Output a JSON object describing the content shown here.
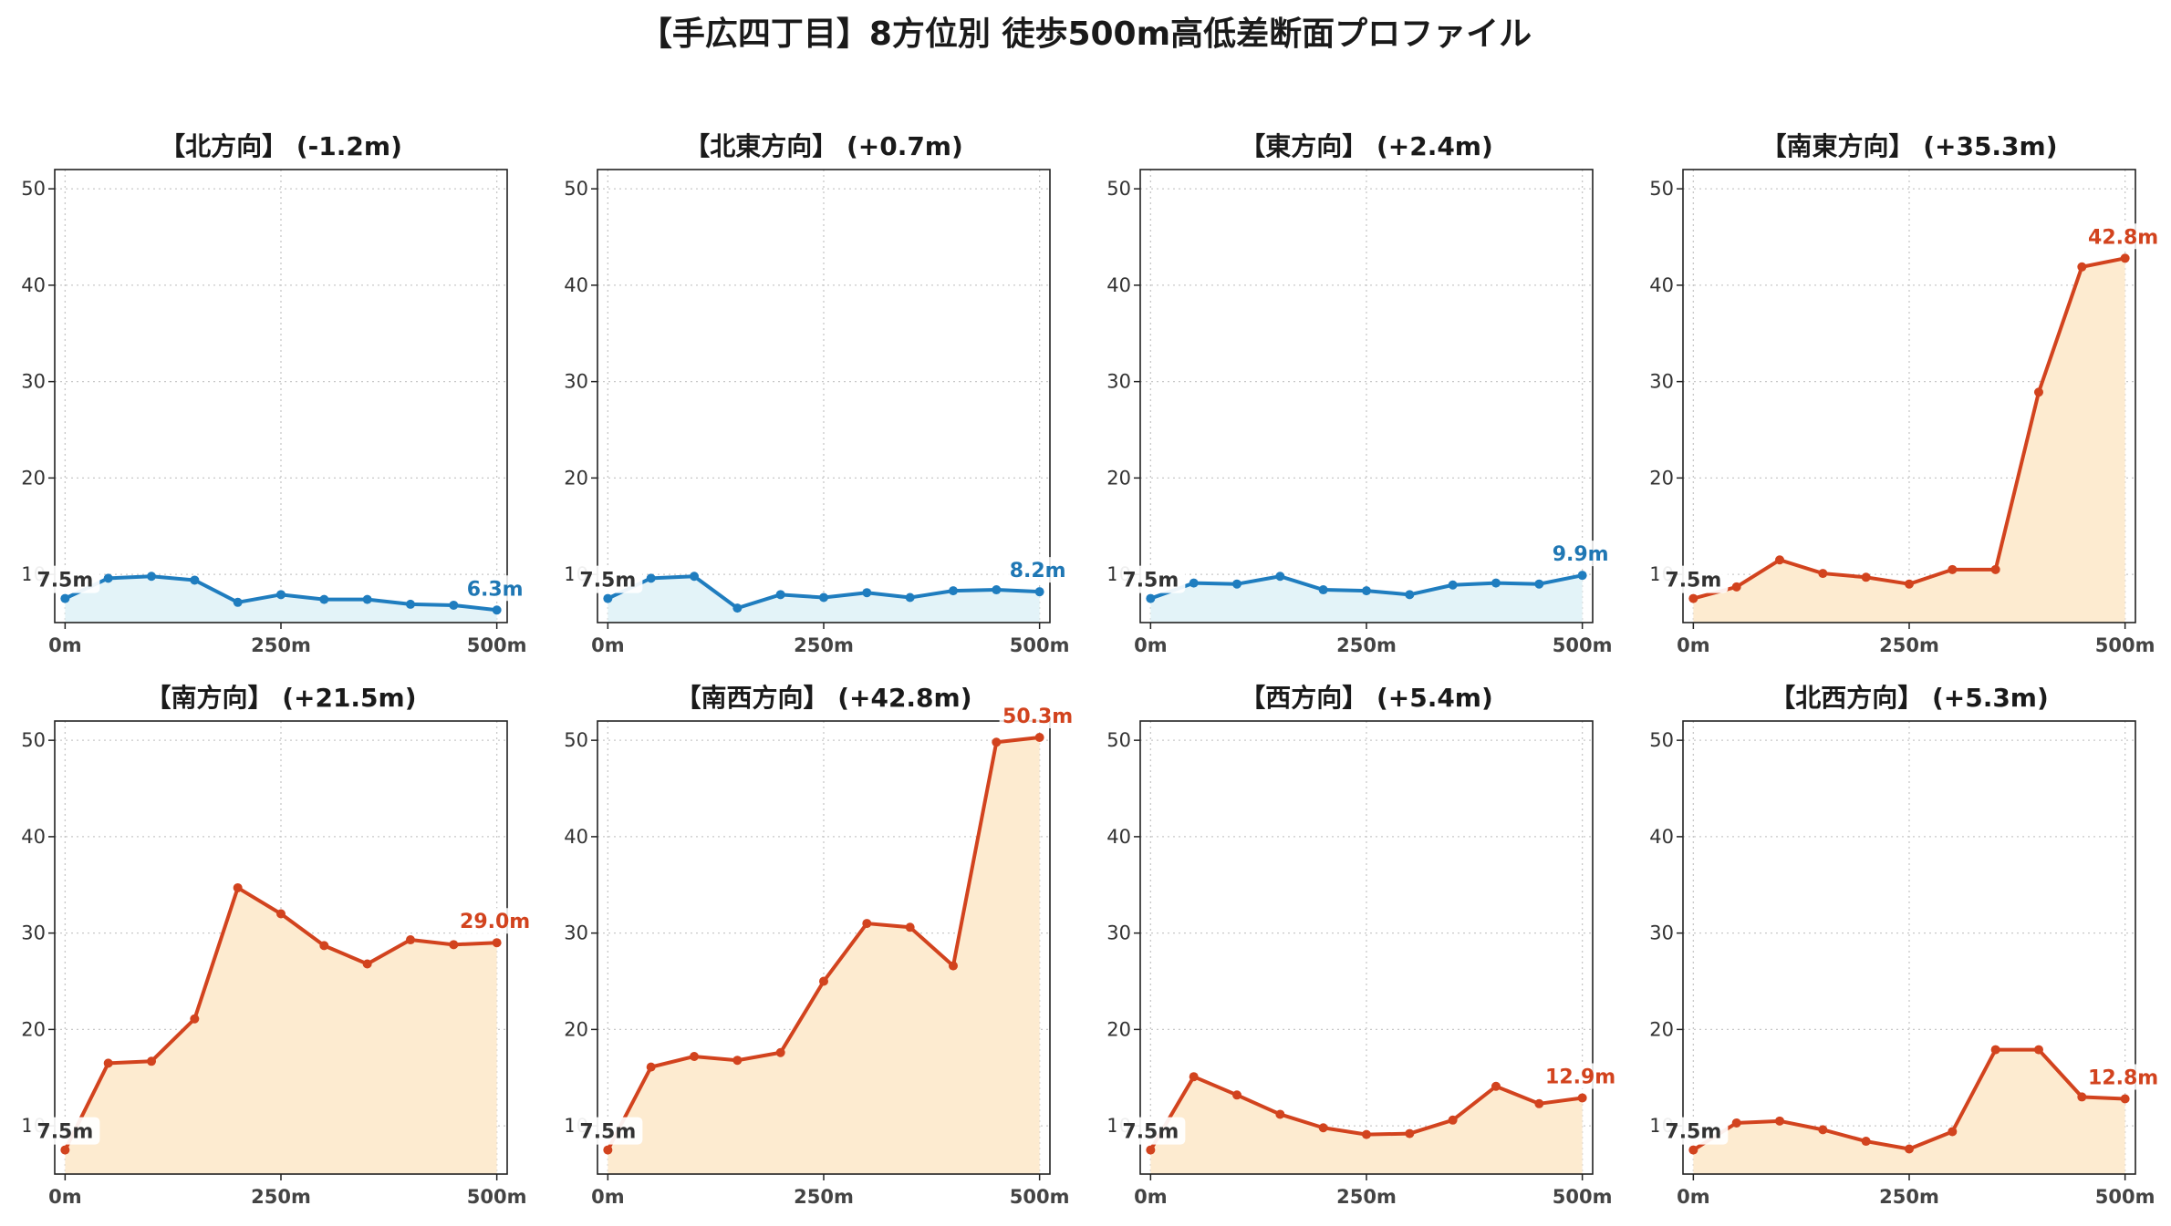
{
  "title": "【手広四丁目】8方位別 徒歩500m高低差断面プロファイル",
  "colors": {
    "down": "#1f77b4",
    "down_line": "#1f7dbf",
    "down_fill": "#e3f3f8",
    "up": "#d2431e",
    "up_fill": "#fdebd0",
    "start_label": "#333333",
    "grid": "#c8c8c8",
    "axis": "#222222"
  },
  "chart_data": [
    {
      "type": "area",
      "title": "【北方向】 (-1.2m)",
      "direction": "down",
      "x": [
        0,
        50,
        100,
        150,
        200,
        250,
        300,
        350,
        400,
        450,
        500
      ],
      "y": [
        7.5,
        9.6,
        9.8,
        9.4,
        7.1,
        7.9,
        7.4,
        7.4,
        6.9,
        6.8,
        6.3
      ],
      "xticks": [
        "0m",
        "250m",
        "500m"
      ],
      "xtick_values": [
        0,
        250,
        500
      ],
      "yticks": [
        "10",
        "20",
        "30",
        "40",
        "50"
      ],
      "ytick_values": [
        10,
        20,
        30,
        40,
        50
      ],
      "xlim": [
        -12,
        512
      ],
      "ylim": [
        5,
        52
      ],
      "start_label": "7.5m",
      "end_label": "6.3m",
      "grid": true
    },
    {
      "type": "area",
      "title": "【北東方向】 (+0.7m)",
      "direction": "down",
      "x": [
        0,
        50,
        100,
        150,
        200,
        250,
        300,
        350,
        400,
        450,
        500
      ],
      "y": [
        7.5,
        9.6,
        9.8,
        6.5,
        7.9,
        7.6,
        8.1,
        7.6,
        8.3,
        8.4,
        8.2
      ],
      "xticks": [
        "0m",
        "250m",
        "500m"
      ],
      "xtick_values": [
        0,
        250,
        500
      ],
      "yticks": [
        "10",
        "20",
        "30",
        "40",
        "50"
      ],
      "ytick_values": [
        10,
        20,
        30,
        40,
        50
      ],
      "xlim": [
        -12,
        512
      ],
      "ylim": [
        5,
        52
      ],
      "start_label": "7.5m",
      "end_label": "8.2m",
      "grid": true
    },
    {
      "type": "area",
      "title": "【東方向】 (+2.4m)",
      "direction": "down",
      "x": [
        0,
        50,
        100,
        150,
        200,
        250,
        300,
        350,
        400,
        450,
        500
      ],
      "y": [
        7.5,
        9.1,
        9.0,
        9.8,
        8.4,
        8.3,
        7.9,
        8.9,
        9.1,
        9.0,
        9.9
      ],
      "xticks": [
        "0m",
        "250m",
        "500m"
      ],
      "xtick_values": [
        0,
        250,
        500
      ],
      "yticks": [
        "10",
        "20",
        "30",
        "40",
        "50"
      ],
      "ytick_values": [
        10,
        20,
        30,
        40,
        50
      ],
      "xlim": [
        -12,
        512
      ],
      "ylim": [
        5,
        52
      ],
      "start_label": "7.5m",
      "end_label": "9.9m",
      "grid": true
    },
    {
      "type": "area",
      "title": "【南東方向】 (+35.3m)",
      "direction": "up",
      "x": [
        0,
        50,
        100,
        150,
        200,
        250,
        300,
        350,
        400,
        450,
        500
      ],
      "y": [
        7.5,
        8.7,
        11.5,
        10.1,
        9.7,
        9.0,
        10.5,
        10.5,
        28.9,
        41.9,
        42.8
      ],
      "xticks": [
        "0m",
        "250m",
        "500m"
      ],
      "xtick_values": [
        0,
        250,
        500
      ],
      "yticks": [
        "10",
        "20",
        "30",
        "40",
        "50"
      ],
      "ytick_values": [
        10,
        20,
        30,
        40,
        50
      ],
      "xlim": [
        -12,
        512
      ],
      "ylim": [
        5,
        52
      ],
      "start_label": "7.5m",
      "end_label": "42.8m",
      "grid": true
    },
    {
      "type": "area",
      "title": "【南方向】 (+21.5m)",
      "direction": "up",
      "x": [
        0,
        50,
        100,
        150,
        200,
        250,
        300,
        350,
        400,
        450,
        500
      ],
      "y": [
        7.5,
        16.5,
        16.7,
        21.1,
        34.7,
        32.0,
        28.7,
        26.8,
        29.3,
        28.8,
        29.0
      ],
      "xticks": [
        "0m",
        "250m",
        "500m"
      ],
      "xtick_values": [
        0,
        250,
        500
      ],
      "yticks": [
        "10",
        "20",
        "30",
        "40",
        "50"
      ],
      "ytick_values": [
        10,
        20,
        30,
        40,
        50
      ],
      "xlim": [
        -12,
        512
      ],
      "ylim": [
        5,
        52
      ],
      "start_label": "7.5m",
      "end_label": "29.0m",
      "grid": true
    },
    {
      "type": "area",
      "title": "【南西方向】 (+42.8m)",
      "direction": "up",
      "x": [
        0,
        50,
        100,
        150,
        200,
        250,
        300,
        350,
        400,
        450,
        500
      ],
      "y": [
        7.5,
        16.1,
        17.2,
        16.8,
        17.6,
        25.0,
        31.0,
        30.6,
        26.6,
        49.8,
        50.3
      ],
      "xticks": [
        "0m",
        "250m",
        "500m"
      ],
      "xtick_values": [
        0,
        250,
        500
      ],
      "yticks": [
        "10",
        "20",
        "30",
        "40",
        "50"
      ],
      "ytick_values": [
        10,
        20,
        30,
        40,
        50
      ],
      "xlim": [
        -12,
        512
      ],
      "ylim": [
        5,
        52
      ],
      "start_label": "7.5m",
      "end_label": "50.3m",
      "grid": true
    },
    {
      "type": "area",
      "title": "【西方向】 (+5.4m)",
      "direction": "up",
      "x": [
        0,
        50,
        100,
        150,
        200,
        250,
        300,
        350,
        400,
        450,
        500
      ],
      "y": [
        7.5,
        15.1,
        13.2,
        11.2,
        9.8,
        9.1,
        9.2,
        10.6,
        14.1,
        12.3,
        12.9
      ],
      "xticks": [
        "0m",
        "250m",
        "500m"
      ],
      "xtick_values": [
        0,
        250,
        500
      ],
      "yticks": [
        "10",
        "20",
        "30",
        "40",
        "50"
      ],
      "ytick_values": [
        10,
        20,
        30,
        40,
        50
      ],
      "xlim": [
        -12,
        512
      ],
      "ylim": [
        5,
        52
      ],
      "start_label": "7.5m",
      "end_label": "12.9m",
      "grid": true
    },
    {
      "type": "area",
      "title": "【北西方向】 (+5.3m)",
      "direction": "up",
      "x": [
        0,
        50,
        100,
        150,
        200,
        250,
        300,
        350,
        400,
        450,
        500
      ],
      "y": [
        7.5,
        10.3,
        10.5,
        9.6,
        8.4,
        7.6,
        9.4,
        17.9,
        17.9,
        13.0,
        12.8
      ],
      "xticks": [
        "0m",
        "250m",
        "500m"
      ],
      "xtick_values": [
        0,
        250,
        500
      ],
      "yticks": [
        "10",
        "20",
        "30",
        "40",
        "50"
      ],
      "ytick_values": [
        10,
        20,
        30,
        40,
        50
      ],
      "xlim": [
        -12,
        512
      ],
      "ylim": [
        5,
        52
      ],
      "start_label": "7.5m",
      "end_label": "12.8m",
      "grid": true
    }
  ]
}
